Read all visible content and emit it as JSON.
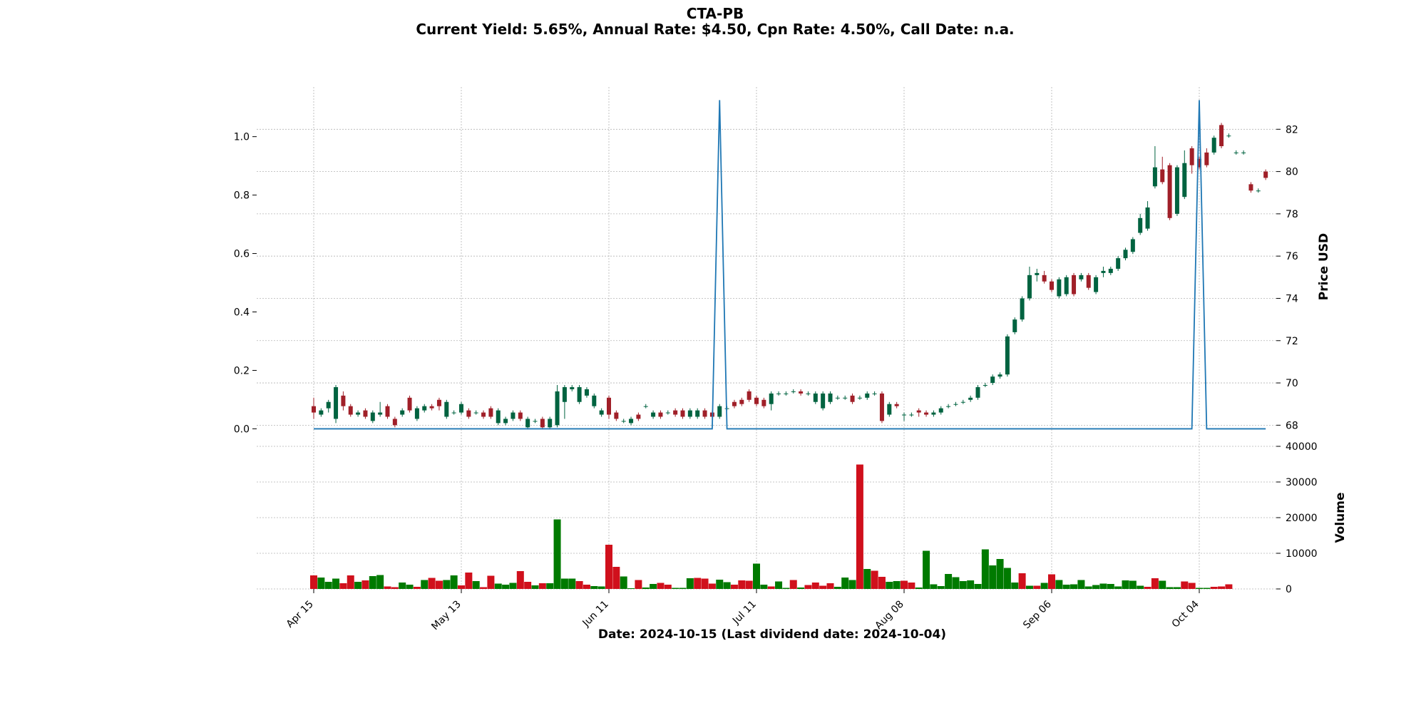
{
  "header": {
    "title": "CTA-PB",
    "subtitle": "Current Yield: 5.65%, Annual Rate: $4.50, Cpn Rate: 4.50%, Call Date: n.a."
  },
  "footer": {
    "xlabel": "Date: 2024-10-15   (Last dividend date: 2024-10-04)"
  },
  "colors": {
    "up": "#006340",
    "down": "#a01f28",
    "vol_up": "#007a00",
    "vol_down": "#d0101c",
    "dividend_line": "#1f77b4",
    "grid": "#b4b4b4"
  },
  "chart_data": [
    {
      "type": "candlestick",
      "title": "CTA-PB",
      "ylabel": "Price USD",
      "ylim": [
        67,
        84
      ],
      "yticks": [
        68,
        70,
        72,
        74,
        76,
        78,
        80,
        82
      ],
      "grid": true,
      "x_tick_labels": [
        "Apr 15",
        "May 13",
        "Jun 11",
        "Jul 11",
        "Aug 08",
        "Sep 06",
        "Oct 04"
      ],
      "x_tick_index": [
        0,
        20,
        40,
        60,
        80,
        100,
        120
      ],
      "candles": [
        [
          68.9,
          68.6,
          69.3,
          68.3
        ],
        [
          68.5,
          68.7,
          68.8,
          68.4
        ],
        [
          68.8,
          69.1,
          69.2,
          68.6
        ],
        [
          68.3,
          69.8,
          69.9,
          68.1
        ],
        [
          69.4,
          68.9,
          69.6,
          68.7
        ],
        [
          68.9,
          68.5,
          69.0,
          68.4
        ],
        [
          68.5,
          68.6,
          68.7,
          68.4
        ],
        [
          68.7,
          68.4,
          68.8,
          68.3
        ],
        [
          68.2,
          68.6,
          68.7,
          68.1
        ],
        [
          68.5,
          68.6,
          69.1,
          68.4
        ],
        [
          68.9,
          68.4,
          69.0,
          68.3
        ],
        [
          68.3,
          68.0,
          68.4,
          67.9
        ],
        [
          68.5,
          68.7,
          68.8,
          68.4
        ],
        [
          69.3,
          68.7,
          69.4,
          68.6
        ],
        [
          68.3,
          68.8,
          68.9,
          68.2
        ],
        [
          68.7,
          68.9,
          69.0,
          68.6
        ],
        [
          68.9,
          68.8,
          69.0,
          68.7
        ],
        [
          69.2,
          68.9,
          69.3,
          68.7
        ],
        [
          68.4,
          69.1,
          69.2,
          68.3
        ],
        [
          68.6,
          68.6,
          68.7,
          68.5
        ],
        [
          68.6,
          69.0,
          69.1,
          68.5
        ],
        [
          68.7,
          68.4,
          68.8,
          68.3
        ],
        [
          68.6,
          68.6,
          68.7,
          68.5
        ],
        [
          68.6,
          68.4,
          68.7,
          68.3
        ],
        [
          68.8,
          68.4,
          68.9,
          68.3
        ],
        [
          68.1,
          68.7,
          68.8,
          68.0
        ],
        [
          68.1,
          68.3,
          68.4,
          68.0
        ],
        [
          68.3,
          68.6,
          68.7,
          68.2
        ],
        [
          68.6,
          68.3,
          68.7,
          68.2
        ],
        [
          67.9,
          68.3,
          68.4,
          67.8
        ],
        [
          68.2,
          68.2,
          68.3,
          68.1
        ],
        [
          68.3,
          67.9,
          68.4,
          67.8
        ],
        [
          67.9,
          68.3,
          68.4,
          67.8
        ],
        [
          68.0,
          69.6,
          69.9,
          67.9
        ],
        [
          69.1,
          69.8,
          69.9,
          68.3
        ],
        [
          69.7,
          69.8,
          69.9,
          69.6
        ],
        [
          69.1,
          69.8,
          69.9,
          69.0
        ],
        [
          69.4,
          69.7,
          69.8,
          69.3
        ],
        [
          68.9,
          69.4,
          69.5,
          68.8
        ],
        [
          68.5,
          68.7,
          68.8,
          68.4
        ],
        [
          69.3,
          68.5,
          69.4,
          68.3
        ],
        [
          68.6,
          68.3,
          68.7,
          68.2
        ],
        [
          68.2,
          68.2,
          68.3,
          68.1
        ],
        [
          68.1,
          68.3,
          68.4,
          68.0
        ],
        [
          68.5,
          68.3,
          68.6,
          68.2
        ],
        [
          68.9,
          68.9,
          69.0,
          68.8
        ],
        [
          68.4,
          68.6,
          68.7,
          68.3
        ],
        [
          68.6,
          68.4,
          68.7,
          68.3
        ],
        [
          68.6,
          68.6,
          68.7,
          68.5
        ],
        [
          68.7,
          68.5,
          68.8,
          68.4
        ],
        [
          68.7,
          68.4,
          68.8,
          68.3
        ],
        [
          68.4,
          68.7,
          68.8,
          68.3
        ],
        [
          68.4,
          68.7,
          68.8,
          68.3
        ],
        [
          68.7,
          68.4,
          68.8,
          68.3
        ],
        [
          68.6,
          68.4,
          68.7,
          68.3
        ],
        [
          68.4,
          68.9,
          69.0,
          68.3
        ],
        [
          68.8,
          68.8,
          68.9,
          68.7
        ],
        [
          69.1,
          68.9,
          69.2,
          68.8
        ],
        [
          69.2,
          69.0,
          69.3,
          68.9
        ],
        [
          69.6,
          69.2,
          69.7,
          69.1
        ],
        [
          69.3,
          69.0,
          69.4,
          68.9
        ],
        [
          69.2,
          68.9,
          69.3,
          68.8
        ],
        [
          69.0,
          69.5,
          69.6,
          68.7
        ],
        [
          69.5,
          69.5,
          69.6,
          69.4
        ],
        [
          69.5,
          69.5,
          69.6,
          69.4
        ],
        [
          69.6,
          69.6,
          69.7,
          69.5
        ],
        [
          69.6,
          69.5,
          69.7,
          69.4
        ],
        [
          69.5,
          69.5,
          69.6,
          69.4
        ],
        [
          69.1,
          69.5,
          69.6,
          69.0
        ],
        [
          68.8,
          69.5,
          69.6,
          68.7
        ],
        [
          69.1,
          69.5,
          69.6,
          69.0
        ],
        [
          69.3,
          69.3,
          69.4,
          69.2
        ],
        [
          69.3,
          69.3,
          69.4,
          69.2
        ],
        [
          69.4,
          69.1,
          69.5,
          69.0
        ],
        [
          69.3,
          69.3,
          69.4,
          69.2
        ],
        [
          69.3,
          69.5,
          69.6,
          69.2
        ],
        [
          69.5,
          69.5,
          69.6,
          69.4
        ],
        [
          69.5,
          68.2,
          69.6,
          68.1
        ],
        [
          68.5,
          69.0,
          69.1,
          68.4
        ],
        [
          69.0,
          68.9,
          69.1,
          68.8
        ],
        [
          68.5,
          68.5,
          68.6,
          68.2
        ],
        [
          68.5,
          68.5,
          68.6,
          68.4
        ],
        [
          68.7,
          68.6,
          68.8,
          68.4
        ],
        [
          68.6,
          68.5,
          68.7,
          68.4
        ],
        [
          68.5,
          68.6,
          68.7,
          68.4
        ],
        [
          68.6,
          68.8,
          68.9,
          68.5
        ],
        [
          68.9,
          68.9,
          69.0,
          68.8
        ],
        [
          69.0,
          69.0,
          69.1,
          68.9
        ],
        [
          69.1,
          69.1,
          69.2,
          69.0
        ],
        [
          69.2,
          69.3,
          69.4,
          69.1
        ],
        [
          69.3,
          69.8,
          69.9,
          69.2
        ],
        [
          69.9,
          69.9,
          70.0,
          69.8
        ],
        [
          70.0,
          70.3,
          70.4,
          69.9
        ],
        [
          70.3,
          70.4,
          70.5,
          70.2
        ],
        [
          70.4,
          72.2,
          72.3,
          70.3
        ],
        [
          72.4,
          73.0,
          73.1,
          72.3
        ],
        [
          73.0,
          74.0,
          74.1,
          72.9
        ],
        [
          74.0,
          75.1,
          75.5,
          73.9
        ],
        [
          75.1,
          75.2,
          75.4,
          74.8
        ],
        [
          75.1,
          74.8,
          75.3,
          74.7
        ],
        [
          74.8,
          74.4,
          74.9,
          74.3
        ],
        [
          74.1,
          74.9,
          75.0,
          74.0
        ],
        [
          74.2,
          75.0,
          75.1,
          74.1
        ],
        [
          75.1,
          74.2,
          75.2,
          74.1
        ],
        [
          74.9,
          75.1,
          75.2,
          74.8
        ],
        [
          75.1,
          74.5,
          75.2,
          74.4
        ],
        [
          74.3,
          75.0,
          75.1,
          74.2
        ],
        [
          75.2,
          75.3,
          75.5,
          75.0
        ],
        [
          75.2,
          75.4,
          75.5,
          75.1
        ],
        [
          75.4,
          75.9,
          76.0,
          75.3
        ],
        [
          75.9,
          76.3,
          76.4,
          75.8
        ],
        [
          76.2,
          76.8,
          76.9,
          76.1
        ],
        [
          77.1,
          77.8,
          78.0,
          77.0
        ],
        [
          77.3,
          78.3,
          78.6,
          77.2
        ],
        [
          79.3,
          80.2,
          81.2,
          79.2
        ],
        [
          80.1,
          79.5,
          80.7,
          79.4
        ],
        [
          80.3,
          77.8,
          80.4,
          77.7
        ],
        [
          78.0,
          80.2,
          80.3,
          77.9
        ],
        [
          78.8,
          80.4,
          81.0,
          78.7
        ],
        [
          81.1,
          80.3,
          81.2,
          79.9
        ],
        [
          80.6,
          80.2,
          80.7,
          80.1
        ],
        [
          80.9,
          80.3,
          81.1,
          80.2
        ],
        [
          80.9,
          81.6,
          81.7,
          80.8
        ],
        [
          82.2,
          81.2,
          82.3,
          81.1
        ],
        [
          81.7,
          81.7,
          81.8,
          81.6
        ],
        [
          80.9,
          80.9,
          81.0,
          80.8
        ],
        [
          80.9,
          80.9,
          81.0,
          80.8
        ],
        [
          79.4,
          79.1,
          79.5,
          79.0
        ],
        [
          79.1,
          79.1,
          79.2,
          79.0
        ],
        [
          80.0,
          79.7,
          80.1,
          79.6
        ]
      ],
      "dividend_series": {
        "name": "Dividend",
        "ylim": [
          -0.06,
          1.17
        ],
        "yticks": [
          0.0,
          0.2,
          0.4,
          0.6,
          0.8,
          1.0
        ],
        "yticklabels": [
          "0.0",
          "0.2",
          "0.4",
          "0.6",
          "0.8",
          "1.0"
        ],
        "values_nonzero": {
          "55": 1.125,
          "120": 1.125
        }
      }
    },
    {
      "type": "bar",
      "title": "Volume",
      "ylabel": "Volume",
      "ylim": [
        0,
        40000
      ],
      "yticks": [
        0,
        10000,
        20000,
        30000,
        40000
      ],
      "yticklabels": [
        "0",
        "10000",
        "20000",
        "30000",
        "40000"
      ],
      "grid": true,
      "values": [
        3800,
        3200,
        2000,
        2900,
        1600,
        3800,
        2000,
        2400,
        3600,
        3900,
        700,
        500,
        1800,
        1200,
        600,
        2500,
        3100,
        2300,
        2500,
        3800,
        1000,
        4600,
        2200,
        500,
        3700,
        1500,
        1200,
        1700,
        5000,
        2000,
        1000,
        1600,
        1600,
        19500,
        2900,
        2900,
        2200,
        1200,
        800,
        700,
        12400,
        6200,
        3500,
        200,
        2500,
        400,
        1400,
        1700,
        1200,
        300,
        300,
        3000,
        3100,
        2900,
        1500,
        2600,
        1900,
        1200,
        2400,
        2300,
        7100,
        1200,
        700,
        2100,
        300,
        2500,
        400,
        1100,
        1800,
        900,
        1600,
        600,
        3200,
        2500,
        34900,
        5600,
        5100,
        3400,
        2000,
        2200,
        2300,
        1800,
        400,
        10700,
        1300,
        800,
        4200,
        3300,
        2200,
        2400,
        1400,
        11100,
        6600,
        8400,
        5900,
        1800,
        4400,
        900,
        900,
        1700,
        4100,
        2500,
        1200,
        1300,
        2500,
        700,
        1100,
        1500,
        1400,
        700,
        2400,
        2300,
        900,
        600,
        3000,
        2300,
        500,
        500,
        2100,
        1700,
        300,
        300,
        600,
        700,
        1300
      ],
      "up": [
        false,
        true,
        true,
        true,
        false,
        false,
        true,
        false,
        true,
        true,
        false,
        false,
        true,
        true,
        false,
        true,
        false,
        false,
        true,
        true,
        false,
        false,
        true,
        false,
        false,
        true,
        true,
        true,
        false,
        false,
        true,
        false,
        true,
        true,
        true,
        true,
        false,
        false,
        true,
        true,
        false,
        false,
        true,
        true,
        false,
        true,
        true,
        false,
        false,
        true,
        true,
        true,
        false,
        false,
        false,
        true,
        true,
        false,
        false,
        false,
        true,
        true,
        false,
        true,
        true,
        false,
        true,
        false,
        false,
        false,
        false,
        true,
        true,
        true,
        false,
        true,
        false,
        false,
        true,
        true,
        false,
        false,
        true,
        true,
        true,
        true,
        true,
        true,
        true,
        true,
        true,
        true,
        true,
        true,
        true,
        true,
        false,
        true,
        false,
        true,
        false,
        true,
        true,
        true,
        true,
        true,
        true,
        true,
        true,
        true,
        true,
        true,
        true,
        false,
        false,
        true,
        true,
        true,
        false,
        false,
        true,
        true,
        false,
        false,
        false,
        false,
        false,
        true
      ]
    }
  ]
}
